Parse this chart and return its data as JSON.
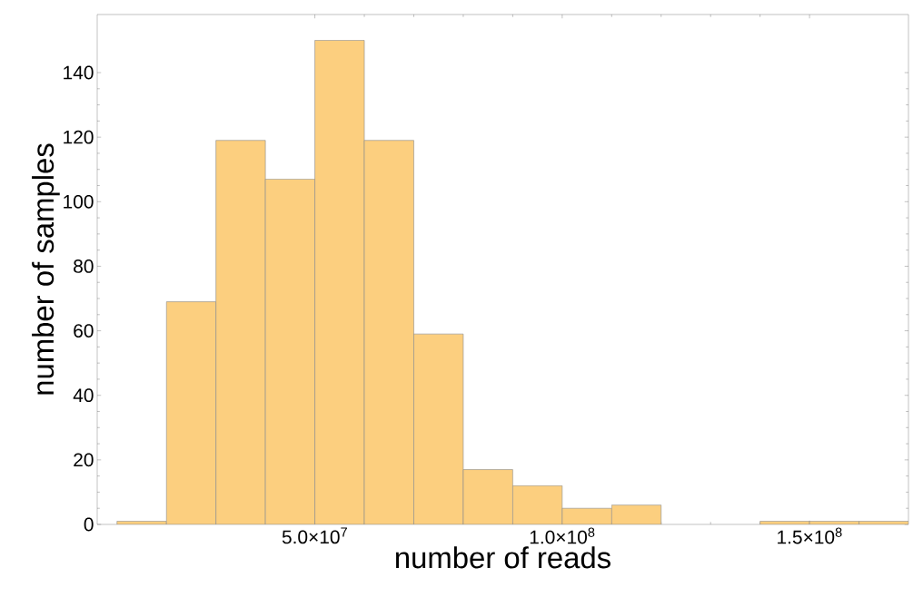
{
  "chart_data": {
    "type": "histogram",
    "xlabel": "number of reads",
    "ylabel": "number of samples",
    "bins": [
      10000000,
      20000000,
      30000000,
      40000000,
      50000000,
      60000000,
      70000000,
      80000000,
      90000000,
      100000000,
      110000000,
      120000000,
      130000000,
      140000000,
      150000000,
      160000000,
      170000000
    ],
    "values": [
      1,
      69,
      119,
      107,
      150,
      119,
      59,
      17,
      12,
      5,
      6,
      0,
      0,
      1,
      1,
      1
    ],
    "color": "#fccf7f",
    "xlim": [
      6000000,
      170000000
    ],
    "ylim": [
      0,
      158
    ],
    "xticks": [
      {
        "value": 50000000,
        "label": "5.0×10$^{7}$"
      },
      {
        "value": 100000000,
        "label": "1.0×10$^{8}$"
      },
      {
        "value": 150000000,
        "label": "1.5×10$^{8}$"
      }
    ],
    "yticks": [
      0,
      20,
      40,
      60,
      80,
      100,
      120,
      140
    ],
    "grid": false
  }
}
